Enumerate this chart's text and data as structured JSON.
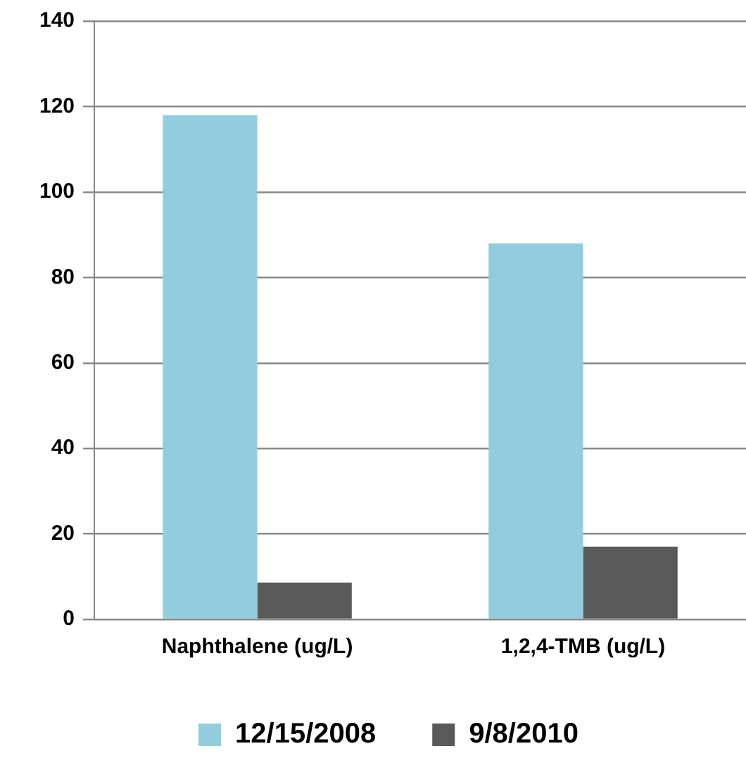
{
  "chart_data": {
    "type": "bar",
    "categories": [
      "Naphthalene (ug/L)",
      "1,2,4-TMB (ug/L)"
    ],
    "series": [
      {
        "name": "12/15/2008",
        "color": "#93cddd",
        "values": [
          118,
          88
        ]
      },
      {
        "name": "9/8/2010",
        "color": "#595959",
        "values": [
          8.6,
          17
        ]
      }
    ],
    "ylim": [
      0,
      140
    ],
    "yticks": [
      0,
      20,
      40,
      60,
      80,
      100,
      120,
      140
    ],
    "grid": "y",
    "legend": "bottom"
  }
}
